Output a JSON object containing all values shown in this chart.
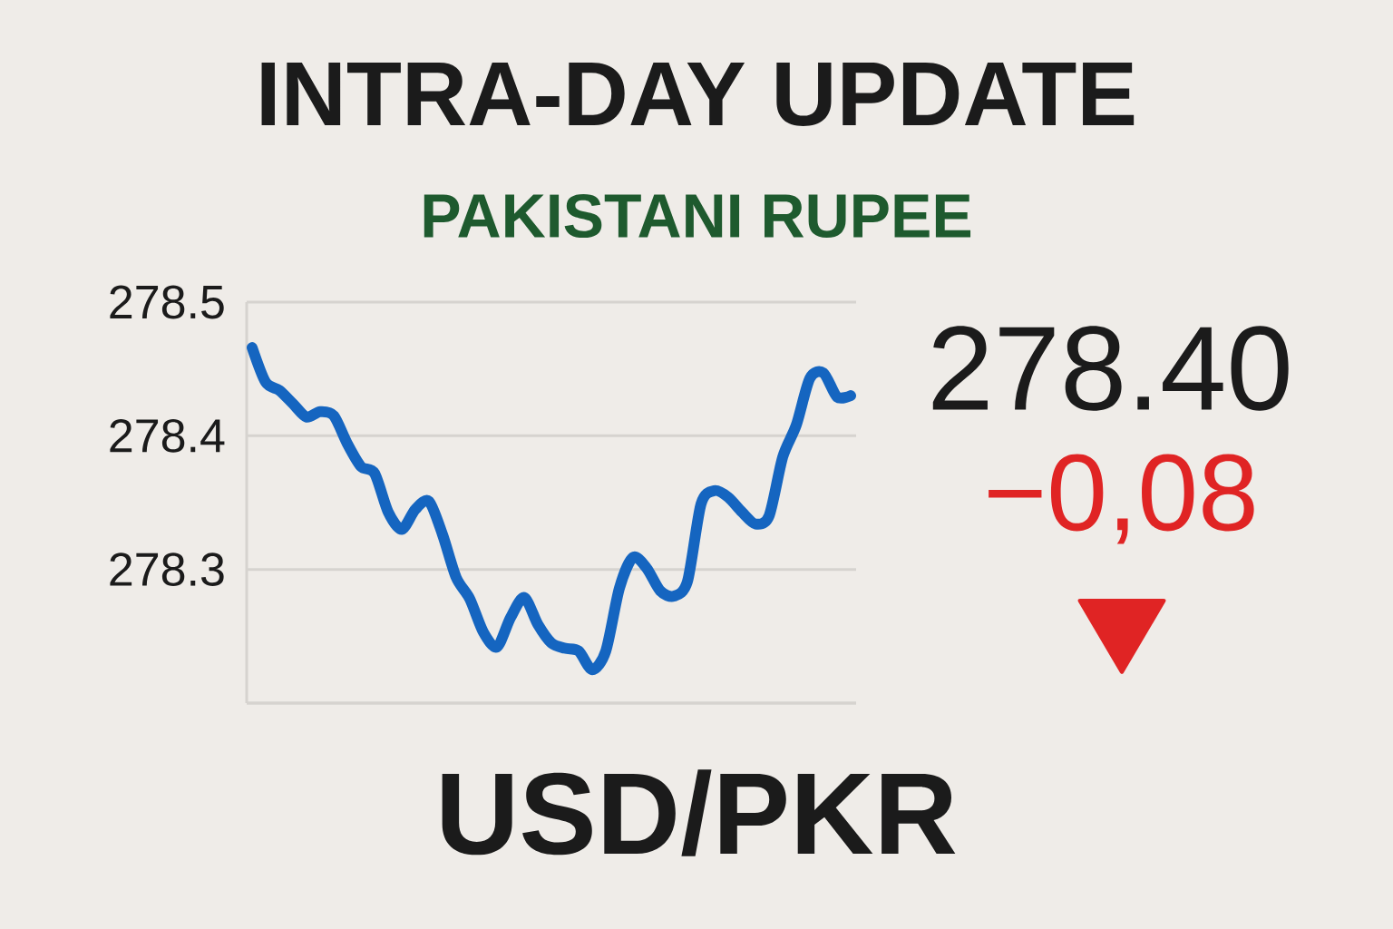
{
  "chart_data": {
    "type": "line",
    "title": "INTRA-DAY UPDATE",
    "subtitle": "PAKISTANI RUPEE",
    "annotations": [
      "278.40",
      "−0,08",
      "USD/PKR"
    ],
    "categories": [
      null,
      null,
      null,
      null,
      null,
      null,
      null,
      null,
      null,
      null,
      null,
      null,
      null,
      null,
      null,
      null,
      null,
      null,
      null,
      null,
      null,
      null,
      null,
      null,
      null,
      null,
      null,
      null,
      null,
      null,
      null,
      null,
      null,
      null,
      null,
      null,
      null,
      null,
      null,
      null,
      null,
      null,
      null,
      null,
      null
    ],
    "series": [
      {
        "color": "#1565c0",
        "values": [
          278.466,
          278.44,
          278.434,
          278.424,
          278.414,
          278.418,
          278.415,
          278.394,
          278.377,
          278.372,
          278.343,
          278.33,
          278.345,
          278.351,
          278.326,
          278.294,
          278.278,
          278.253,
          278.242,
          278.264,
          278.279,
          278.259,
          278.245,
          278.241,
          278.239,
          278.225,
          278.239,
          278.286,
          278.309,
          278.301,
          278.284,
          278.28,
          278.291,
          278.349,
          278.359,
          278.354,
          278.343,
          278.334,
          278.34,
          278.384,
          278.408,
          278.443,
          278.447,
          278.429,
          278.43
        ]
      }
    ],
    "ylim": [
      278.2,
      278.5
    ],
    "yticks": [
      {
        "value": 278.2,
        "label": null
      },
      278.3,
      278.4,
      278.5
    ],
    "grid": "y",
    "tick_labels": "y"
  }
}
